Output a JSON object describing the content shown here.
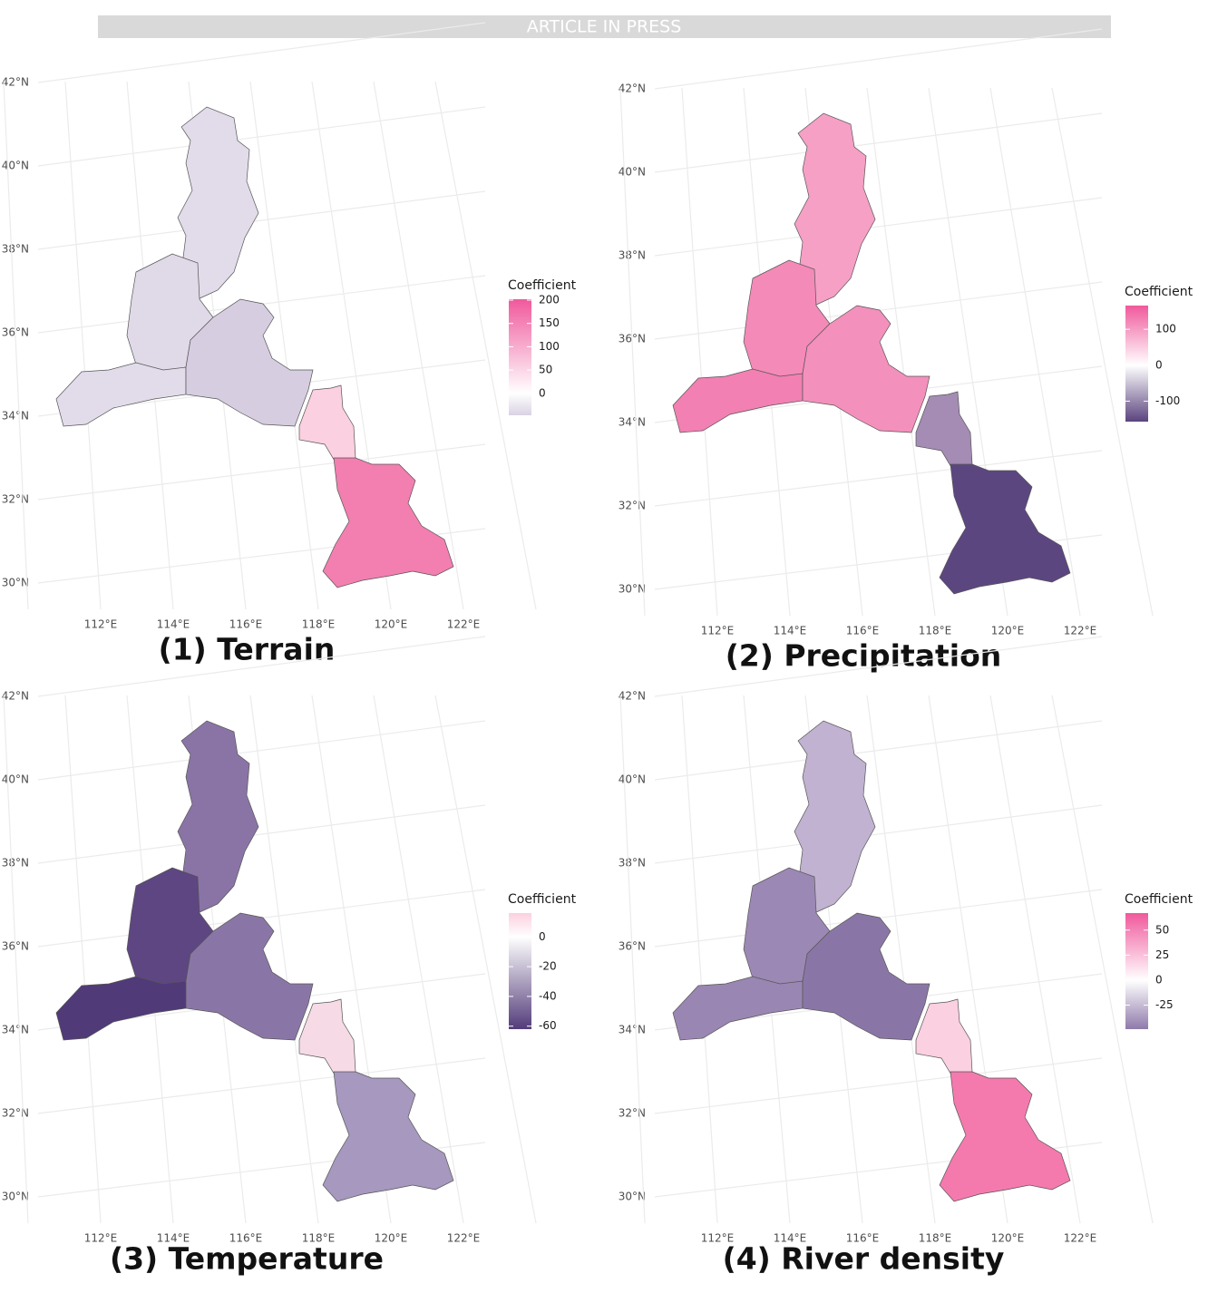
{
  "banner": "ARTICLE IN PRESS",
  "lat_labels": [
    "42°N",
    "40°N",
    "38°N",
    "36°N",
    "34°N",
    "32°N",
    "30°N"
  ],
  "lon_labels": [
    "112°E",
    "114°E",
    "116°E",
    "118°E",
    "120°E",
    "122°E"
  ],
  "panels": [
    {
      "title": "(1) Terrain",
      "legend": {
        "title": "Coefficient",
        "ticks": [
          200,
          150,
          100,
          50,
          0
        ],
        "lim": [
          -47,
          202
        ],
        "colors": [
          "#d9d2e4",
          "#ffffff",
          "#f0599c"
        ]
      },
      "region_colors": [
        "#e2dcea",
        "#e0d9e8",
        "#e2dcea",
        "#d6cde0",
        "#fbd0e0",
        "#f27fb0"
      ]
    },
    {
      "title": "(2) Precipitation",
      "legend": {
        "title": "Coefficient",
        "ticks": [
          100,
          0,
          -100
        ],
        "lim": [
          -157,
          166
        ],
        "colors": [
          "#5a437e",
          "#ffffff",
          "#f0599c"
        ]
      },
      "region_colors": [
        "#f6a0c6",
        "#f48ab8",
        "#f280b2",
        "#f490bc",
        "#a48cb4",
        "#5c4680"
      ]
    },
    {
      "title": "(3) Temperature",
      "legend": {
        "title": "Coefficient",
        "ticks": [
          0,
          -20,
          -40,
          -60
        ],
        "lim": [
          -62,
          16
        ],
        "colors": [
          "#533c7a",
          "#ffffff",
          "#fbd0e0"
        ]
      },
      "region_colors": [
        "#8a74a6",
        "#5e4682",
        "#503a78",
        "#8a76a6",
        "#f6dbe6",
        "#a698be"
      ]
    },
    {
      "title": "(4) River density",
      "legend": {
        "title": "Coefficient",
        "ticks": [
          50,
          25,
          0,
          -25
        ],
        "lim": [
          -49,
          67
        ],
        "colors": [
          "#8f7aab",
          "#ffffff",
          "#f0599c"
        ]
      },
      "region_colors": [
        "#c0b2d0",
        "#9c88b4",
        "#9a86b2",
        "#8a76a6",
        "#fbd0e0",
        "#f47aae"
      ]
    }
  ]
}
